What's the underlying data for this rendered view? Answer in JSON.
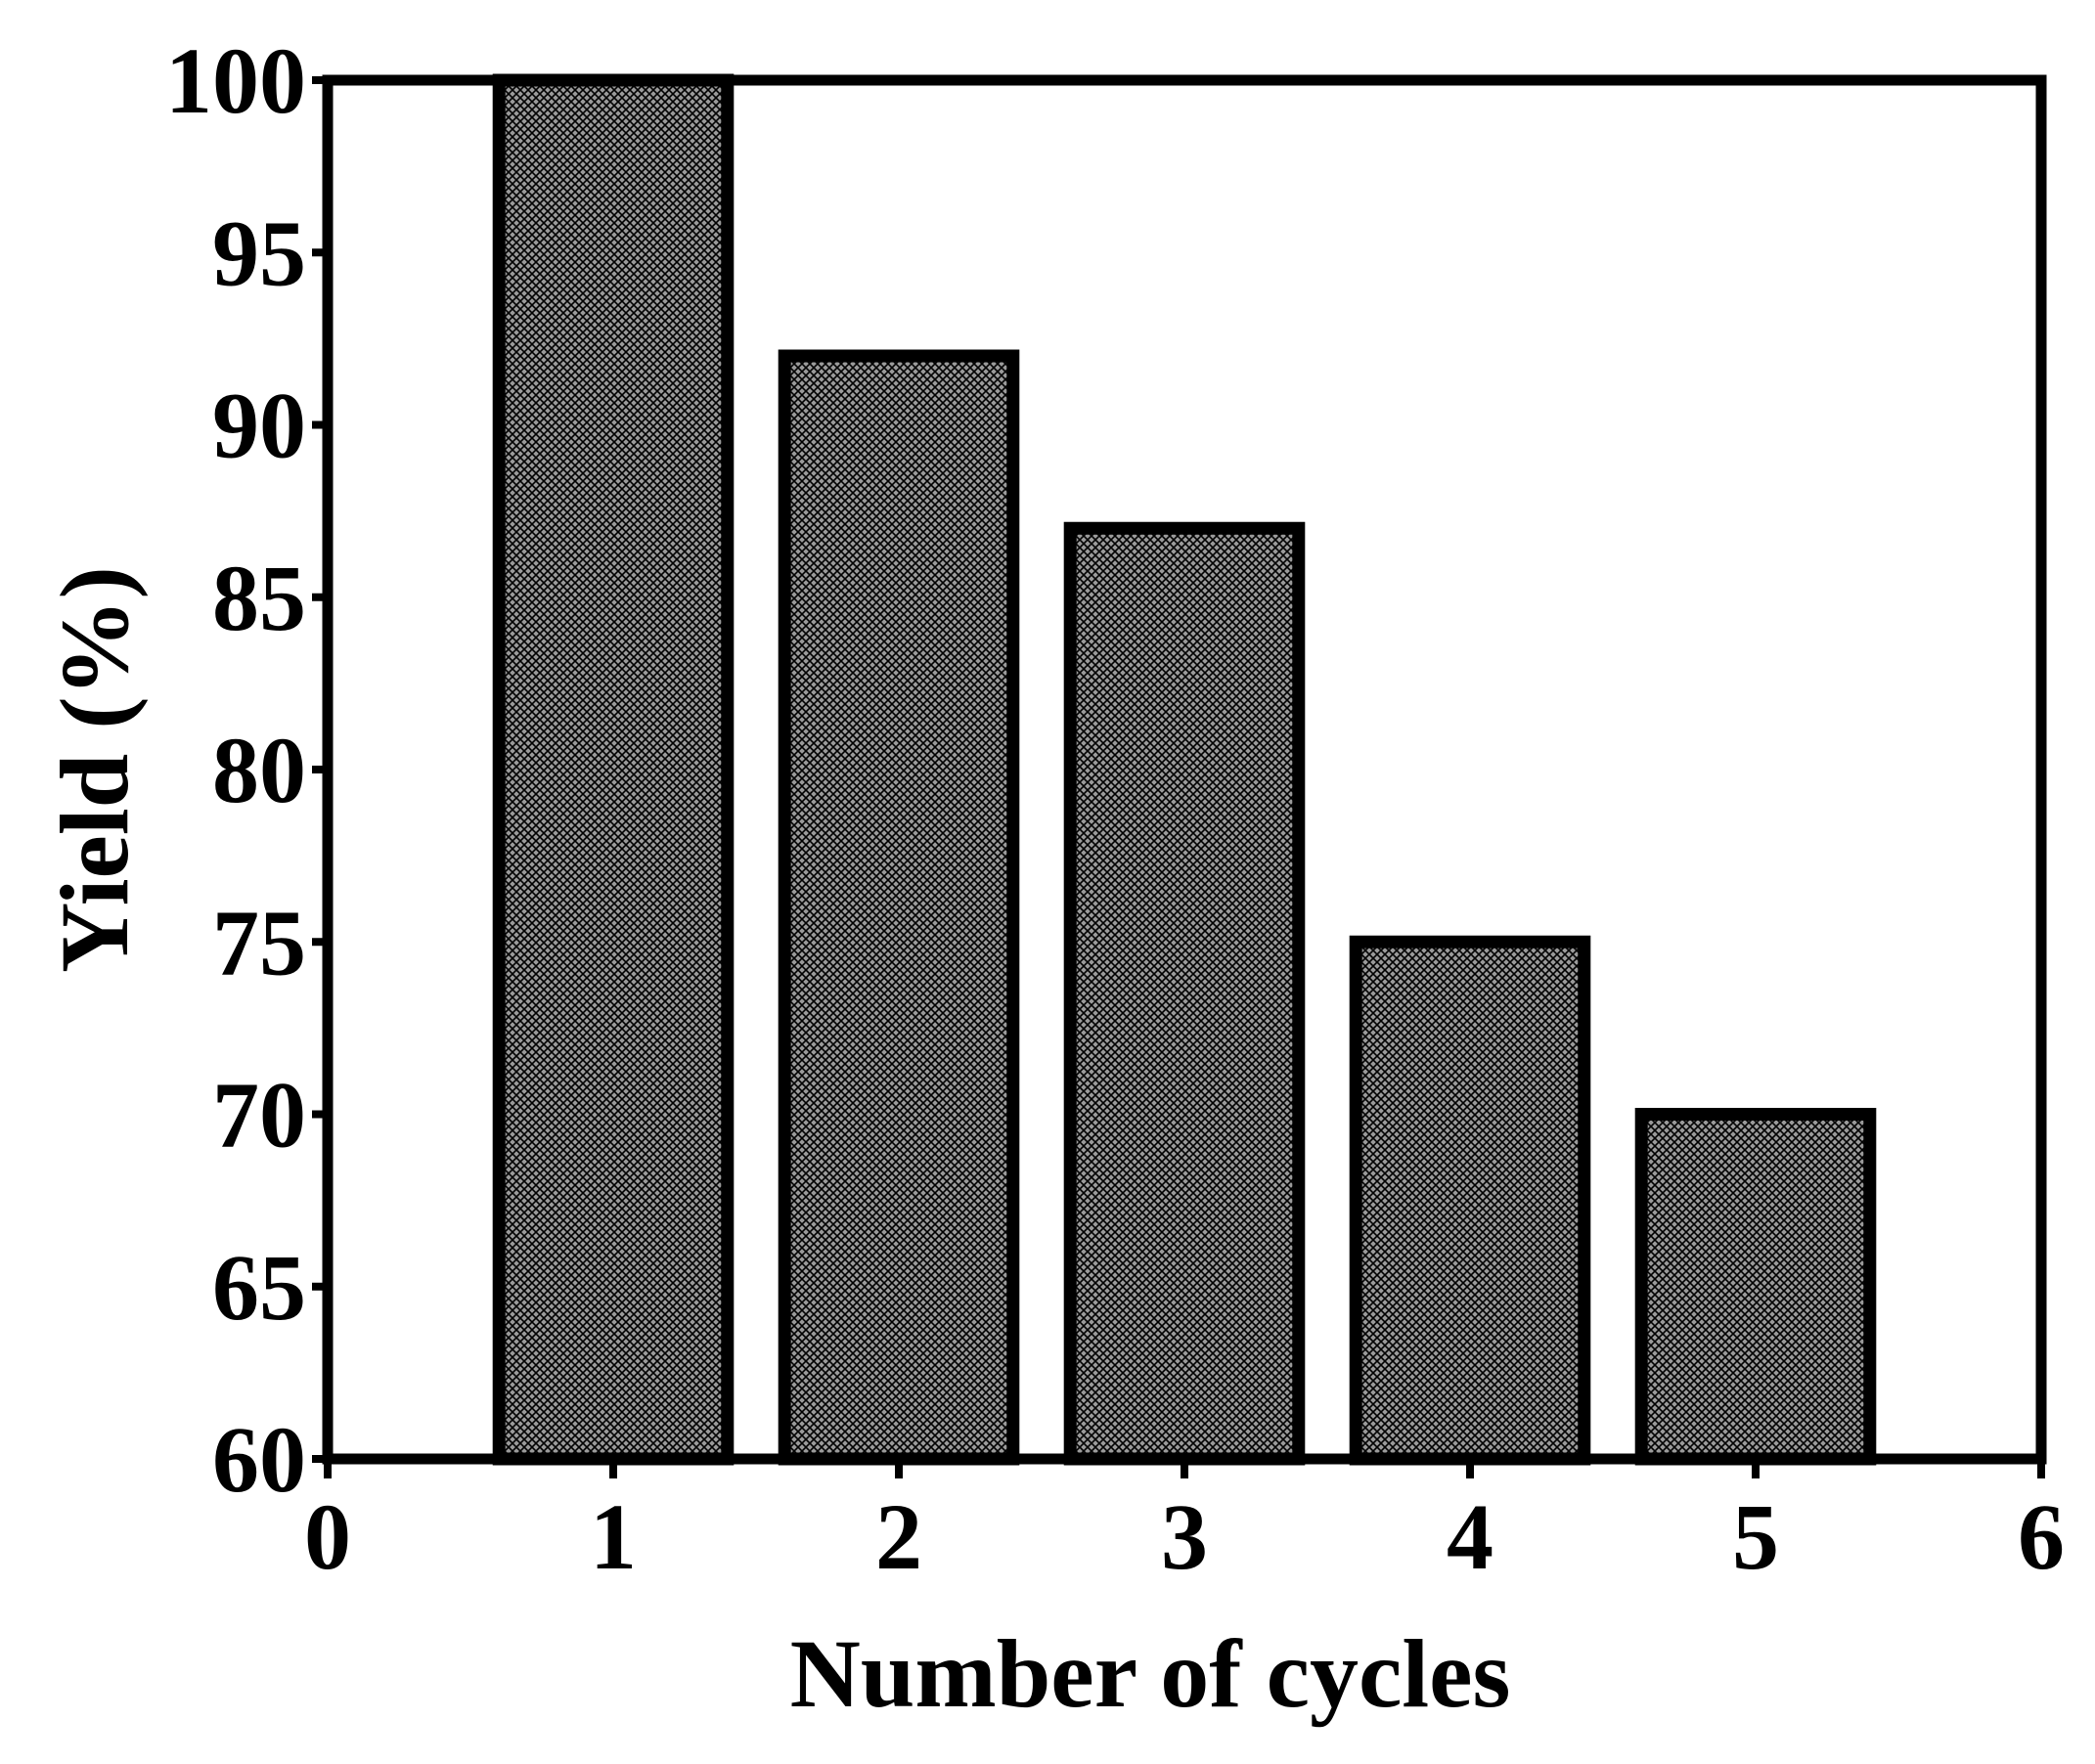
{
  "chart_data": {
    "type": "bar",
    "x_label": "Number of cycles",
    "y_label": "Yield (%)",
    "x": [
      1,
      2,
      3,
      4,
      5
    ],
    "values": [
      100,
      92,
      87,
      75,
      70
    ],
    "xlim": [
      0,
      6
    ],
    "xticks": [
      0,
      1,
      2,
      3,
      4,
      5,
      6
    ],
    "ylim": [
      60,
      100
    ],
    "yticks": [
      60,
      65,
      70,
      75,
      80,
      85,
      90,
      95,
      100
    ],
    "color": "#9a9a9a"
  }
}
